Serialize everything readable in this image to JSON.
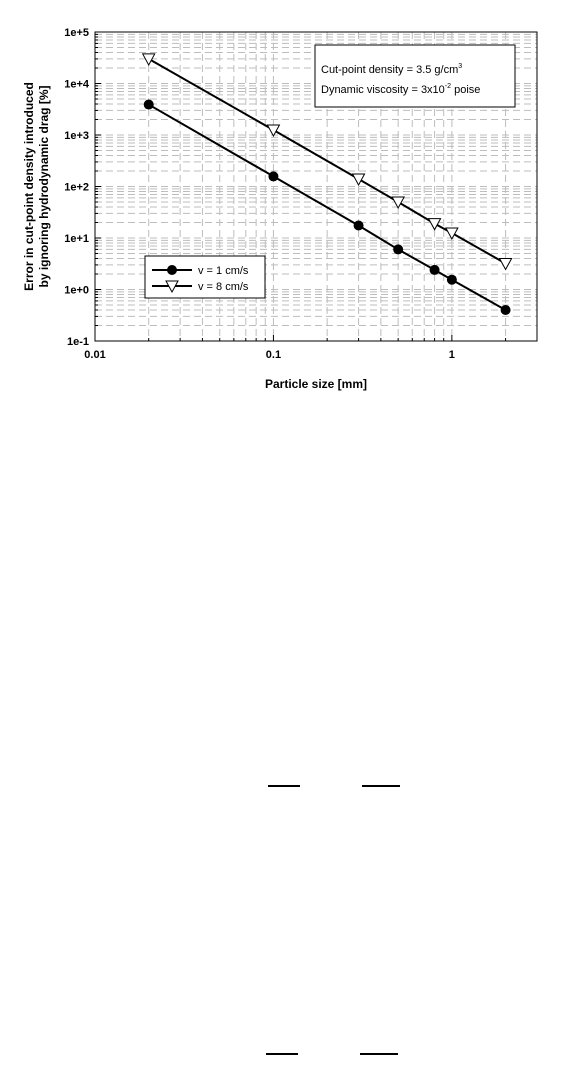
{
  "chart_data": {
    "type": "line",
    "xlabel": "Particle size [mm]",
    "ylabel_lines": [
      "Error in cut-point density introduced",
      "by ignoring hydrodynamic drag [%]"
    ],
    "x_scale": "log",
    "y_scale": "log",
    "xlim": [
      0.01,
      3
    ],
    "ylim": [
      0.1,
      100000
    ],
    "grid": true,
    "x_ticks": [
      {
        "value": 0.01,
        "label": "0.01"
      },
      {
        "value": 0.1,
        "label": "0.1"
      },
      {
        "value": 1,
        "label": "1"
      }
    ],
    "y_ticks": [
      {
        "value": 0.1,
        "label": "1e-1"
      },
      {
        "value": 1,
        "label": "1e+0"
      },
      {
        "value": 10,
        "label": "1e+1"
      },
      {
        "value": 100,
        "label": "1e+2"
      },
      {
        "value": 1000,
        "label": "1e+3"
      },
      {
        "value": 10000,
        "label": "1e+4"
      },
      {
        "value": 100000,
        "label": "1e+5"
      }
    ],
    "legend_position": "bottom-left",
    "series": [
      {
        "name": "v = 1 cm/s",
        "marker": "filled-circle",
        "x": [
          0.02,
          0.1,
          0.3,
          0.5,
          0.8,
          1.0,
          2.0
        ],
        "y": [
          3900,
          157,
          17.5,
          6.0,
          2.4,
          1.55,
          0.4
        ]
      },
      {
        "name": "v = 8 cm/s",
        "marker": "open-triangle-down",
        "x": [
          0.02,
          0.1,
          0.3,
          0.8,
          0.5,
          1.0,
          2.0
        ],
        "y": [
          30000,
          1250,
          140,
          19,
          50,
          12.5,
          3.2
        ]
      }
    ],
    "annotation": {
      "line1_text": "Cut-point density = 3.5 g/cm",
      "line1_sup": "3",
      "line2_text": "Dynamic viscosity = 3x10",
      "line2_sup": "-2",
      "line2_tail": " poise"
    }
  },
  "colors": {
    "ink": "#000000",
    "grid": "#bdbdbd",
    "marker_fill_open": "#ffffff"
  }
}
